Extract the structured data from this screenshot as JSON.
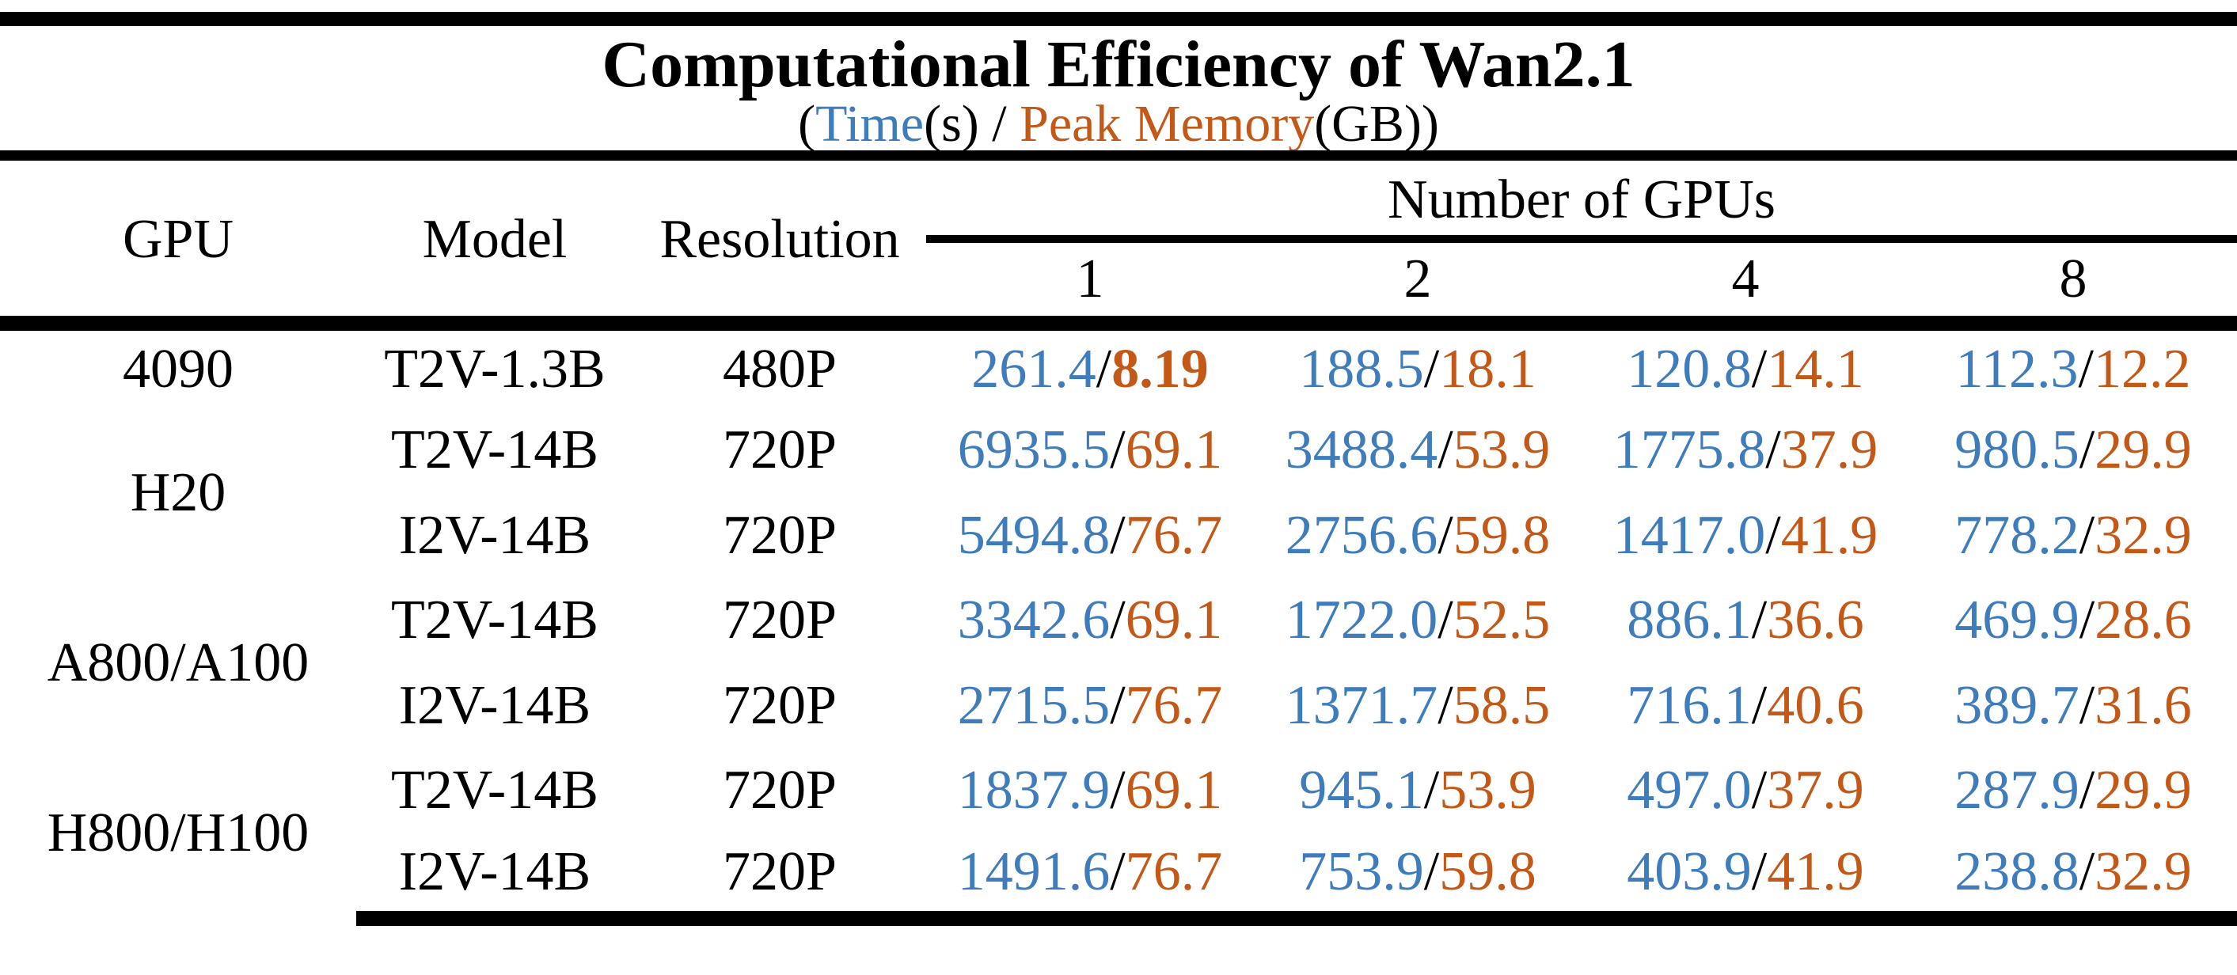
{
  "title": "Computational Efficiency of Wan2.1",
  "subtitle_parts": {
    "open_paren": "(",
    "time_label": "Time",
    "time_unit": "(s)",
    "slash": " / ",
    "memory_label": "Peak Memory",
    "memory_unit": "(GB)",
    "close_paren": ")"
  },
  "colors": {
    "time_blue": "#3E7CBC",
    "memory_orange": "#C35817",
    "text": "#000000",
    "rule": "#000000",
    "background": "#FFFFFF"
  },
  "chart_data": {
    "type": "table",
    "title": "Computational Efficiency of Wan2.1",
    "subtitle": "(Time(s) / Peak Memory(GB))",
    "time_unit": "s",
    "memory_unit": "GB",
    "value_separator": "/",
    "headers": {
      "gpu": "GPU",
      "model": "Model",
      "resolution": "Resolution"
    },
    "column_group": {
      "label": "Number of GPUs",
      "columns": [
        "1",
        "2",
        "4",
        "8"
      ]
    },
    "rows": [
      {
        "gpu": "4090",
        "gpu_rowspan": 1,
        "model": "T2V-1.3B",
        "resolution": "480P",
        "cells": [
          {
            "time": "261.4",
            "memory": "8.19",
            "memory_bold": true
          },
          {
            "time": "188.5",
            "memory": "18.1"
          },
          {
            "time": "120.8",
            "memory": "14.1"
          },
          {
            "time": "112.3",
            "memory": "12.2"
          }
        ]
      },
      {
        "gpu": "H20",
        "gpu_rowspan": 2,
        "model": "T2V-14B",
        "resolution": "720P",
        "cells": [
          {
            "time": "6935.5",
            "memory": "69.1"
          },
          {
            "time": "3488.4",
            "memory": "53.9"
          },
          {
            "time": "1775.8",
            "memory": "37.9"
          },
          {
            "time": "980.5",
            "memory": "29.9"
          }
        ]
      },
      {
        "model": "I2V-14B",
        "resolution": "720P",
        "cells": [
          {
            "time": "5494.8",
            "memory": "76.7"
          },
          {
            "time": "2756.6",
            "memory": "59.8"
          },
          {
            "time": "1417.0",
            "memory": "41.9"
          },
          {
            "time": "778.2",
            "memory": "32.9"
          }
        ]
      },
      {
        "gpu": "A800/A100",
        "gpu_rowspan": 2,
        "model": "T2V-14B",
        "resolution": "720P",
        "cells": [
          {
            "time": "3342.6",
            "memory": "69.1"
          },
          {
            "time": "1722.0",
            "memory": "52.5"
          },
          {
            "time": "886.1",
            "memory": "36.6"
          },
          {
            "time": "469.9",
            "memory": "28.6"
          }
        ]
      },
      {
        "model": "I2V-14B",
        "resolution": "720P",
        "cells": [
          {
            "time": "2715.5",
            "memory": "76.7"
          },
          {
            "time": "1371.7",
            "memory": "58.5"
          },
          {
            "time": "716.1",
            "memory": "40.6"
          },
          {
            "time": "389.7",
            "memory": "31.6"
          }
        ]
      },
      {
        "gpu": "H800/H100",
        "gpu_rowspan": 2,
        "model": "T2V-14B",
        "resolution": "720P",
        "cells": [
          {
            "time": "1837.9",
            "memory": "69.1"
          },
          {
            "time": "945.1",
            "memory": "53.9"
          },
          {
            "time": "497.0",
            "memory": "37.9"
          },
          {
            "time": "287.9",
            "memory": "29.9"
          }
        ]
      },
      {
        "model": "I2V-14B",
        "resolution": "720P",
        "cells": [
          {
            "time": "1491.6",
            "memory": "76.7"
          },
          {
            "time": "753.9",
            "memory": "59.8"
          },
          {
            "time": "403.9",
            "memory": "41.9"
          },
          {
            "time": "238.8",
            "memory": "32.9"
          }
        ]
      }
    ]
  }
}
